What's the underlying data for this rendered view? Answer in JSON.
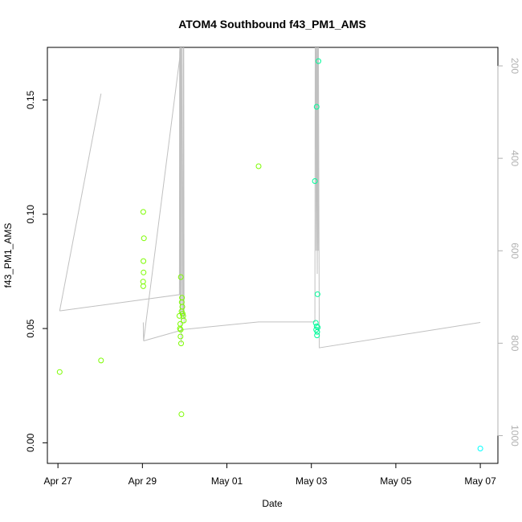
{
  "chart_data": {
    "type": "scatter",
    "title": "ATOM4 Southbound f43_PM1_AMS",
    "xlabel": "Date",
    "ylabel": "f43_PM1_AMS",
    "x_ticks": [
      "Apr 27",
      "Apr 29",
      "May 01",
      "May 03",
      "May 05",
      "May 07"
    ],
    "y_ticks": [
      "0.00",
      "0.05",
      "0.10",
      "0.15"
    ],
    "y2_ticks": [
      "200",
      "400",
      "600",
      "800",
      "1000"
    ],
    "xlim": [
      "2016-04-26T18:00",
      "2016-05-07T10:00"
    ],
    "ylim": [
      -0.009,
      0.173
    ],
    "y2lim": [
      1060,
      160
    ],
    "y2_reversed": true,
    "grid": false,
    "series": [
      {
        "color": "#7cfc00",
        "points": [
          {
            "x": "2016-04-27T01:00",
            "y": 0.031
          },
          {
            "x": "2016-04-28T00:30",
            "y": 0.036
          },
          {
            "x": "2016-04-29T00:30",
            "y": 0.101
          },
          {
            "x": "2016-04-29T00:50",
            "y": 0.0895
          },
          {
            "x": "2016-04-29T00:35",
            "y": 0.0795
          },
          {
            "x": "2016-04-29T00:40",
            "y": 0.0745
          },
          {
            "x": "2016-04-29T00:25",
            "y": 0.0705
          },
          {
            "x": "2016-04-29T00:30",
            "y": 0.0685
          },
          {
            "x": "2016-04-29T21:00",
            "y": 0.0555
          },
          {
            "x": "2016-04-29T21:30",
            "y": 0.052
          },
          {
            "x": "2016-04-29T21:20",
            "y": 0.05
          },
          {
            "x": "2016-04-29T21:45",
            "y": 0.0495
          },
          {
            "x": "2016-04-29T21:40",
            "y": 0.0465
          },
          {
            "x": "2016-04-29T22:00",
            "y": 0.0435
          },
          {
            "x": "2016-04-29T22:10",
            "y": 0.0125
          },
          {
            "x": "2016-04-29T21:50",
            "y": 0.0725
          },
          {
            "x": "2016-04-29T22:30",
            "y": 0.0635
          },
          {
            "x": "2016-04-29T22:20",
            "y": 0.0615
          },
          {
            "x": "2016-04-29T22:40",
            "y": 0.0595
          },
          {
            "x": "2016-04-29T22:15",
            "y": 0.0575
          },
          {
            "x": "2016-04-29T22:50",
            "y": 0.0565
          },
          {
            "x": "2016-04-29T23:10",
            "y": 0.0555
          },
          {
            "x": "2016-04-29T23:30",
            "y": 0.0535
          },
          {
            "x": "2016-05-01T18:00",
            "y": 0.121
          }
        ]
      },
      {
        "color": "#00fa9a",
        "points": [
          {
            "x": "2016-05-03T02:00",
            "y": 0.1145
          },
          {
            "x": "2016-05-03T03:00",
            "y": 0.147
          },
          {
            "x": "2016-05-03T04:00",
            "y": 0.167
          },
          {
            "x": "2016-05-03T03:30",
            "y": 0.065
          },
          {
            "x": "2016-05-03T02:30",
            "y": 0.0525
          },
          {
            "x": "2016-05-03T03:00",
            "y": 0.051
          },
          {
            "x": "2016-05-03T03:40",
            "y": 0.0505
          },
          {
            "x": "2016-05-03T02:45",
            "y": 0.0495
          },
          {
            "x": "2016-05-03T03:20",
            "y": 0.0485
          },
          {
            "x": "2016-05-03T03:10",
            "y": 0.047
          }
        ]
      },
      {
        "color": "#00ffff",
        "points": [
          {
            "x": "2016-05-07T00:00",
            "y": -0.0025
          }
        ]
      }
    ],
    "secondary_line": {
      "color": "#c0c0c0",
      "axis": "right",
      "segments": [
        [
          {
            "x": "2016-04-27T01:00",
            "y2": 730
          },
          {
            "x": "2016-04-28T00:30",
            "y2": 260
          }
        ],
        [
          {
            "x": "2016-04-27T01:00",
            "y2": 730
          },
          {
            "x": "2016-04-29T21:00",
            "y2": 695
          },
          {
            "x": "2016-04-29T21:10",
            "y2": 170
          },
          {
            "x": "2016-04-29T21:20",
            "y2": 160
          },
          {
            "x": "2016-04-29T21:30",
            "y2": 740
          },
          {
            "x": "2016-04-29T21:40",
            "y2": 160
          },
          {
            "x": "2016-04-29T21:50",
            "y2": 710
          },
          {
            "x": "2016-04-29T22:00",
            "y2": 160
          },
          {
            "x": "2016-04-29T22:20",
            "y2": 160
          },
          {
            "x": "2016-04-29T22:40",
            "y2": 660
          },
          {
            "x": "2016-04-29T22:50",
            "y2": 740
          },
          {
            "x": "2016-04-29T23:10",
            "y2": 160
          },
          {
            "x": "2016-04-29T23:20",
            "y2": 745
          },
          {
            "x": "2016-04-29T23:30",
            "y2": 160
          },
          {
            "x": "2016-04-29T23:40",
            "y2": 755
          }
        ],
        [
          {
            "x": "2016-04-29T00:30",
            "y2": 755
          },
          {
            "x": "2016-04-29T00:40",
            "y2": 795
          },
          {
            "x": "2016-04-29T22:00",
            "y2": 160
          },
          {
            "x": "2016-04-29T22:05",
            "y2": 800
          }
        ],
        [
          {
            "x": "2016-04-29T00:40",
            "y2": 795
          },
          {
            "x": "2016-04-29T23:50",
            "y2": 770
          },
          {
            "x": "2016-05-01T18:00",
            "y2": 754
          },
          {
            "x": "2016-05-03T02:00",
            "y2": 754
          },
          {
            "x": "2016-05-03T02:10",
            "y2": 160
          },
          {
            "x": "2016-05-03T02:30",
            "y2": 160
          },
          {
            "x": "2016-05-03T02:40",
            "y2": 600
          },
          {
            "x": "2016-05-03T03:00",
            "y2": 160
          },
          {
            "x": "2016-05-03T03:20",
            "y2": 650
          },
          {
            "x": "2016-05-03T03:30",
            "y2": 160
          },
          {
            "x": "2016-05-03T03:50",
            "y2": 600
          },
          {
            "x": "2016-05-03T04:00",
            "y2": 160
          },
          {
            "x": "2016-05-03T04:30",
            "y2": 810
          },
          {
            "x": "2016-05-07T00:00",
            "y2": 755
          }
        ]
      ]
    }
  }
}
